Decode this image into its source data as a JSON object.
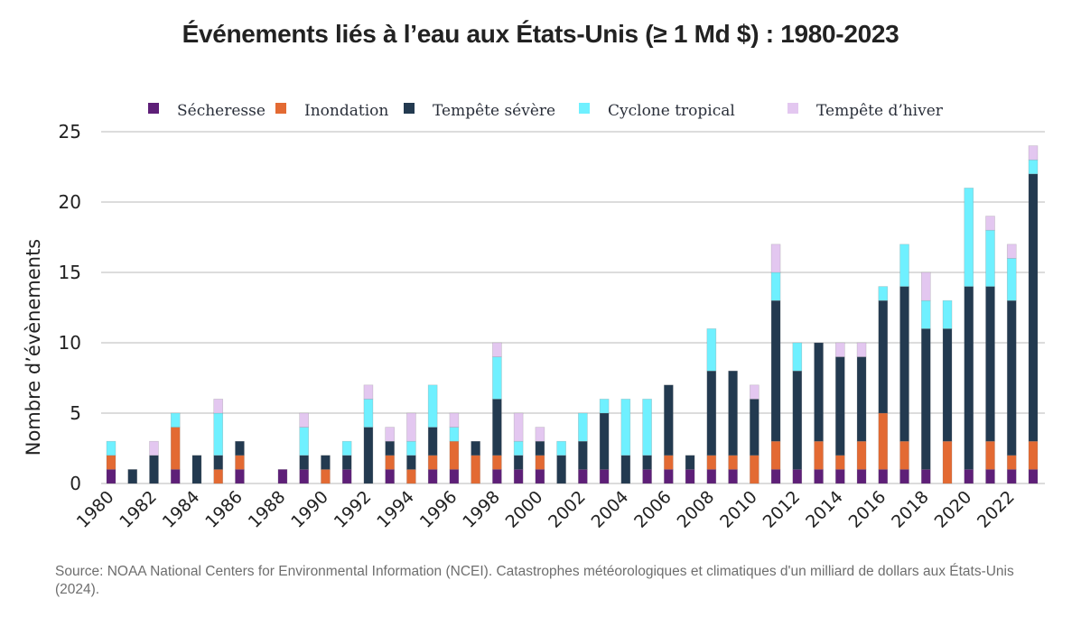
{
  "chart_data": {
    "type": "bar",
    "stacked": true,
    "title": "Événements liés à l’eau aux États-Unis (≥ 1 Md $) : 1980-2023",
    "xlabel": "",
    "ylabel": "Nombre d’évènements",
    "ylim": [
      0,
      25
    ],
    "yticks": [
      0,
      5,
      10,
      15,
      20,
      25
    ],
    "grid": true,
    "legend_position": "top",
    "categories": [
      1980,
      1981,
      1982,
      1983,
      1984,
      1985,
      1986,
      1987,
      1988,
      1989,
      1990,
      1991,
      1992,
      1993,
      1994,
      1995,
      1996,
      1997,
      1998,
      1999,
      2000,
      2001,
      2002,
      2003,
      2004,
      2005,
      2006,
      2007,
      2008,
      2009,
      2010,
      2011,
      2012,
      2013,
      2014,
      2015,
      2016,
      2017,
      2018,
      2019,
      2020,
      2021,
      2022,
      2023
    ],
    "xtick_labels": [
      "1980",
      "1982",
      "1984",
      "1986",
      "1988",
      "1990",
      "1992",
      "1994",
      "1996",
      "1998",
      "2000",
      "2002",
      "2004",
      "2006",
      "2008",
      "2010",
      "2012",
      "2014",
      "2016",
      "2018",
      "2020",
      "2022"
    ],
    "series": [
      {
        "name": "Sécheresse",
        "color": "#5e1f78",
        "values": [
          1,
          0,
          0,
          1,
          0,
          0,
          1,
          0,
          1,
          1,
          0,
          1,
          0,
          1,
          0,
          1,
          1,
          0,
          1,
          1,
          1,
          0,
          1,
          1,
          0,
          1,
          1,
          1,
          1,
          1,
          0,
          1,
          1,
          1,
          1,
          1,
          1,
          1,
          1,
          0,
          1,
          1,
          1,
          1
        ]
      },
      {
        "name": "Inondation",
        "color": "#e36a33",
        "values": [
          1,
          0,
          0,
          3,
          0,
          1,
          1,
          0,
          0,
          0,
          1,
          0,
          0,
          1,
          1,
          1,
          2,
          2,
          1,
          0,
          1,
          0,
          0,
          0,
          0,
          0,
          1,
          0,
          1,
          1,
          2,
          2,
          0,
          2,
          1,
          2,
          4,
          2,
          0,
          3,
          0,
          2,
          1,
          2
        ]
      },
      {
        "name": "Tempête sévère",
        "color": "#233a50",
        "values": [
          0,
          1,
          2,
          0,
          2,
          1,
          1,
          0,
          0,
          1,
          1,
          1,
          4,
          1,
          1,
          2,
          0,
          1,
          4,
          1,
          1,
          2,
          2,
          4,
          2,
          1,
          5,
          1,
          6,
          6,
          4,
          10,
          7,
          7,
          7,
          6,
          8,
          11,
          10,
          8,
          13,
          11,
          11,
          19
        ]
      },
      {
        "name": "Cyclone tropical",
        "color": "#6ff0ff",
        "values": [
          1,
          0,
          0,
          1,
          0,
          3,
          0,
          0,
          0,
          2,
          0,
          1,
          2,
          0,
          1,
          3,
          1,
          0,
          3,
          1,
          0,
          1,
          2,
          1,
          4,
          4,
          0,
          0,
          3,
          0,
          0,
          2,
          2,
          0,
          0,
          0,
          1,
          3,
          2,
          2,
          7,
          4,
          3,
          1
        ]
      },
      {
        "name": "Tempête d’hiver",
        "color": "#e3c7f0",
        "values": [
          0,
          0,
          1,
          0,
          0,
          1,
          0,
          0,
          0,
          1,
          0,
          0,
          1,
          1,
          2,
          0,
          1,
          0,
          1,
          2,
          1,
          0,
          0,
          0,
          0,
          0,
          0,
          0,
          0,
          0,
          1,
          2,
          0,
          0,
          1,
          1,
          0,
          0,
          2,
          0,
          0,
          1,
          1,
          1
        ]
      }
    ]
  },
  "source": "Source: NOAA National Centers for Environmental Information (NCEI). Catastrophes météorologiques et climatiques d'un milliard de dollars aux États-Unis (2024)."
}
